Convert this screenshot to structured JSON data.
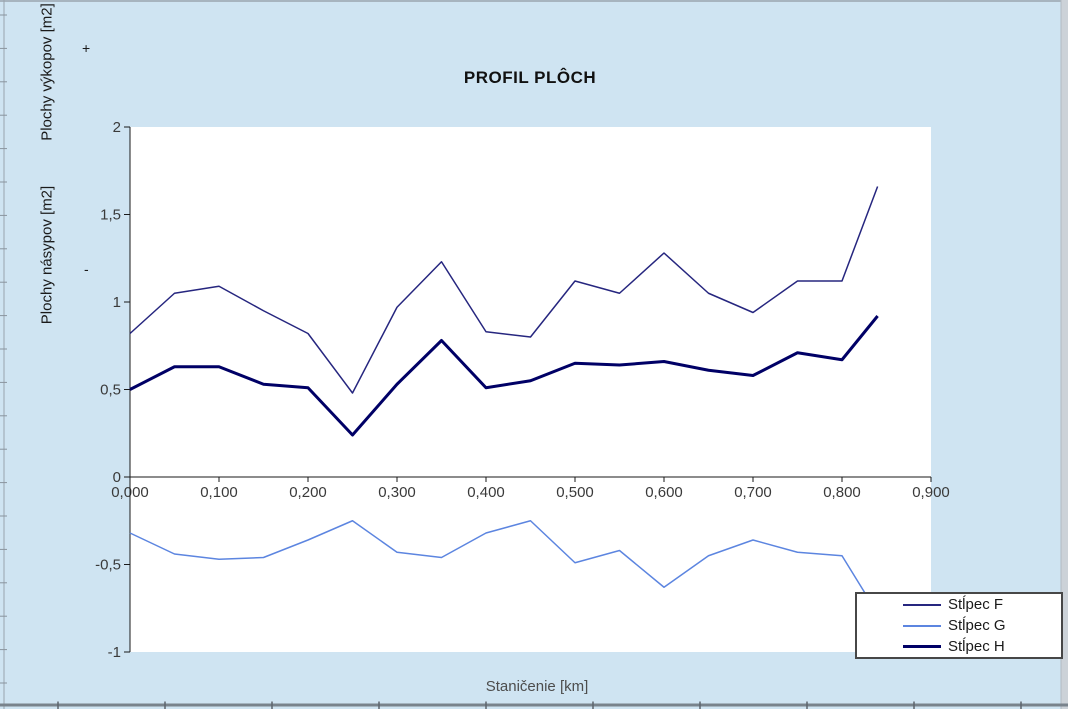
{
  "window": {
    "background_color": "#cfe4f2",
    "plot_background_color": "#ffffff",
    "sheet_edge_color": "#9aa4ae"
  },
  "chart_data": {
    "type": "line",
    "title": "PROFIL PLÔCH",
    "xlabel": "Staničenie [km]",
    "ylabel_top": "Plochy výkopov [m2]",
    "ylabel_top_sign": "+",
    "ylabel_bottom": "Plochy násypov [m2]",
    "ylabel_bottom_sign": "-",
    "grid": false,
    "legend_position": "bottom-right",
    "xlim": [
      0,
      0.9
    ],
    "ylim": [
      -1,
      2
    ],
    "x_ticks": [
      {
        "value": 0.0,
        "label": "0,000"
      },
      {
        "value": 0.1,
        "label": "0,100"
      },
      {
        "value": 0.2,
        "label": "0,200"
      },
      {
        "value": 0.3,
        "label": "0,300"
      },
      {
        "value": 0.4,
        "label": "0,400"
      },
      {
        "value": 0.5,
        "label": "0,500"
      },
      {
        "value": 0.6,
        "label": "0,600"
      },
      {
        "value": 0.7,
        "label": "0,700"
      },
      {
        "value": 0.8,
        "label": "0,800"
      },
      {
        "value": 0.9,
        "label": "0,900"
      }
    ],
    "y_ticks": [
      {
        "value": 2,
        "label": "2"
      },
      {
        "value": 1.5,
        "label": "1,5"
      },
      {
        "value": 1,
        "label": "1"
      },
      {
        "value": 0.5,
        "label": "0,5"
      },
      {
        "value": 0,
        "label": "0"
      },
      {
        "value": -0.5,
        "label": "-0,5"
      },
      {
        "value": -1,
        "label": "-1"
      }
    ],
    "x": [
      0.0,
      0.05,
      0.1,
      0.15,
      0.2,
      0.25,
      0.3,
      0.35,
      0.4,
      0.45,
      0.5,
      0.55,
      0.6,
      0.65,
      0.7,
      0.75,
      0.8,
      0.84
    ],
    "series": [
      {
        "name": "Stĺpec F",
        "color": "#26267f",
        "stroke_width": 1.5,
        "values": [
          0.82,
          1.05,
          1.09,
          0.95,
          0.82,
          0.48,
          0.97,
          1.23,
          0.83,
          0.8,
          1.12,
          1.05,
          1.28,
          1.05,
          0.94,
          1.12,
          1.12,
          1.66
        ]
      },
      {
        "name": "Stĺpec G",
        "color": "#5c85e0",
        "stroke_width": 1.5,
        "values": [
          -0.32,
          -0.44,
          -0.47,
          -0.46,
          -0.36,
          -0.25,
          -0.43,
          -0.46,
          -0.32,
          -0.25,
          -0.49,
          -0.42,
          -0.63,
          -0.45,
          -0.36,
          -0.43,
          -0.45,
          -0.78
        ]
      },
      {
        "name": "Stĺpec H",
        "color": "#000066",
        "stroke_width": 3,
        "values": [
          0.5,
          0.63,
          0.63,
          0.53,
          0.51,
          0.24,
          0.53,
          0.78,
          0.51,
          0.55,
          0.65,
          0.64,
          0.66,
          0.61,
          0.58,
          0.71,
          0.67,
          0.92
        ]
      }
    ]
  }
}
